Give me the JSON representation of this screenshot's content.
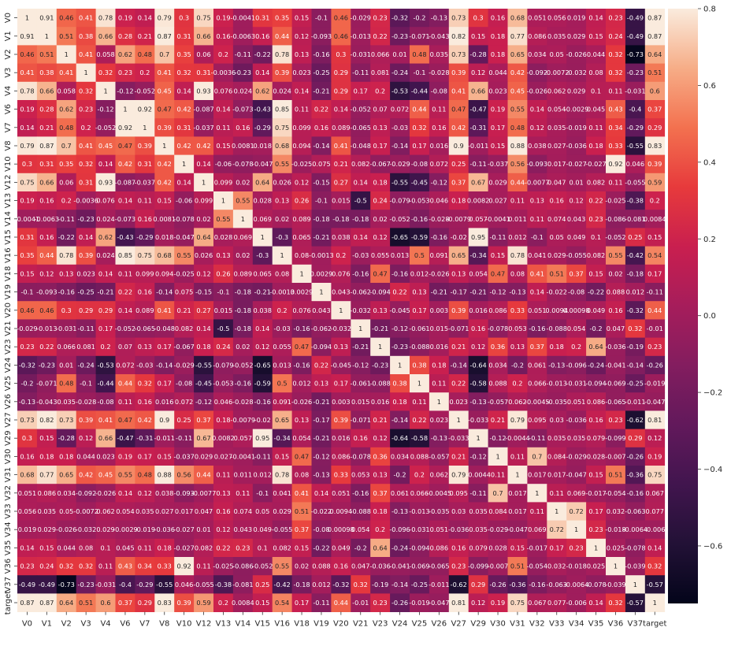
{
  "chart_data": {
    "type": "heatmap",
    "title": "",
    "xlabel": "",
    "ylabel": "",
    "labels": [
      "V0",
      "V1",
      "V2",
      "V3",
      "V4",
      "V6",
      "V7",
      "V8",
      "V10",
      "V12",
      "V13",
      "V14",
      "V15",
      "V16",
      "V18",
      "V19",
      "V20",
      "V21",
      "V23",
      "V24",
      "V25",
      "V26",
      "V27",
      "V29",
      "V30",
      "V31",
      "V32",
      "V33",
      "V34",
      "V35",
      "V36",
      "V37",
      "target"
    ],
    "colorbar": {
      "range": [
        -0.75,
        0.8
      ],
      "ticks": [
        -0.6,
        -0.4,
        -0.2,
        0.0,
        0.2,
        0.4,
        0.6,
        0.8
      ],
      "tick_labels": [
        "−0.6",
        "−0.4",
        "−0.2",
        "0.0",
        "0.2",
        "0.4",
        "0.6",
        "0.8"
      ]
    },
    "colormap": "rocket",
    "annotations": [
      [
        "1",
        "0.91",
        "0.46",
        "0.41",
        "0.78",
        "0.19",
        "0.14",
        "0.79",
        "0.3",
        "0.75",
        "0.19",
        "-0.0041",
        "0.31",
        "0.35",
        "0.15",
        "-0.1",
        "0.46",
        "-0.029",
        "0.23",
        "-0.32",
        "-0.2",
        "-0.13",
        "0.73",
        "0.3",
        "0.16",
        "0.68",
        "0.051",
        "0.056",
        "0.019",
        "0.14",
        "0.23",
        "-0.49",
        "0.87"
      ],
      [
        "0.91",
        "1",
        "0.51",
        "0.38",
        "0.66",
        "0.28",
        "0.21",
        "0.87",
        "0.31",
        "0.66",
        "0.16",
        "-0.0063",
        "0.16",
        "0.44",
        "0.12",
        "-0.093",
        "0.46",
        "-0.013",
        "0.22",
        "-0.23",
        "-0.071",
        "-0.043",
        "0.82",
        "0.15",
        "0.18",
        "0.77",
        "0.086",
        "0.035",
        "0.029",
        "0.15",
        "0.24",
        "-0.49",
        "0.87"
      ],
      [
        "0.46",
        "0.51",
        "1",
        "0.41",
        "0.058",
        "0.62",
        "0.48",
        "0.7",
        "0.35",
        "0.06",
        "0.2",
        "-0.11",
        "-0.22",
        "0.78",
        "0.13",
        "-0.16",
        "0.3",
        "-0.031",
        "0.066",
        "0.01",
        "0.48",
        "0.035",
        "0.73",
        "-0.28",
        "0.18",
        "0.65",
        "0.034",
        "0.05",
        "-0.026",
        "0.044",
        "0.32",
        "-0.73",
        "0.64"
      ],
      [
        "0.41",
        "0.38",
        "0.41",
        "1",
        "0.32",
        "0.23",
        "0.2",
        "0.41",
        "0.32",
        "0.31",
        "-0.0036",
        "-0.23",
        "0.14",
        "0.39",
        "0.023",
        "-0.25",
        "0.29",
        "-0.11",
        "0.081",
        "-0.24",
        "-0.1",
        "-0.028",
        "0.39",
        "0.12",
        "0.044",
        "0.42",
        "-0.092",
        "-0.0072",
        "-0.032",
        "0.08",
        "0.32",
        "-0.23",
        "0.51"
      ],
      [
        "0.78",
        "0.66",
        "0.058",
        "0.32",
        "1",
        "-0.12",
        "-0.052",
        "0.45",
        "0.14",
        "0.93",
        "0.076",
        "0.024",
        "0.62",
        "0.024",
        "0.14",
        "-0.21",
        "0.29",
        "0.17",
        "0.2",
        "-0.53",
        "-0.44",
        "-0.08",
        "0.41",
        "0.66",
        "0.023",
        "0.45",
        "-0.026",
        "0.062",
        "0.029",
        "0.1",
        "0.11",
        "-0.031",
        "0.6"
      ],
      [
        "0.19",
        "0.28",
        "0.62",
        "0.23",
        "-0.12",
        "1",
        "0.92",
        "0.47",
        "0.42",
        "-0.087",
        "0.14",
        "-0.073",
        "-0.43",
        "0.85",
        "0.11",
        "0.22",
        "0.14",
        "-0.052",
        "0.07",
        "0.072",
        "0.44",
        "0.11",
        "0.47",
        "-0.47",
        "0.19",
        "0.55",
        "0.14",
        "0.054",
        "-0.0029",
        "0.045",
        "0.43",
        "-0.4",
        "0.37"
      ],
      [
        "0.14",
        "0.21",
        "0.48",
        "0.2",
        "-0.052",
        "0.92",
        "1",
        "0.39",
        "0.31",
        "-0.037",
        "0.11",
        "0.16",
        "-0.29",
        "0.75",
        "0.099",
        "0.16",
        "0.089",
        "-0.065",
        "0.13",
        "-0.03",
        "0.32",
        "0.16",
        "0.42",
        "-0.31",
        "0.17",
        "0.48",
        "0.12",
        "0.035",
        "-0.019",
        "0.11",
        "0.34",
        "-0.29",
        "0.29"
      ],
      [
        "0.79",
        "0.87",
        "0.7",
        "0.41",
        "0.45",
        "0.47",
        "0.39",
        "1",
        "0.42",
        "0.42",
        "0.15",
        "0.0081",
        "0.018",
        "0.68",
        "0.094",
        "-0.14",
        "0.41",
        "-0.048",
        "0.17",
        "-0.14",
        "0.17",
        "0.016",
        "0.9",
        "-0.011",
        "0.15",
        "0.88",
        "0.038",
        "0.027",
        "-0.036",
        "0.18",
        "0.33",
        "-0.55",
        "0.83"
      ],
      [
        "0.3",
        "0.31",
        "0.35",
        "0.32",
        "0.14",
        "0.42",
        "0.31",
        "0.42",
        "1",
        "0.14",
        "-0.06",
        "-0.078",
        "-0.047",
        "0.55",
        "-0.025",
        "0.075",
        "0.21",
        "0.082",
        "-0.067",
        "-0.029",
        "-0.08",
        "0.072",
        "0.25",
        "-0.11",
        "-0.037",
        "0.56",
        "-0.093",
        "0.017",
        "-0.027",
        "-0.027",
        "0.92",
        "0.046",
        "0.39"
      ],
      [
        "0.75",
        "0.66",
        "0.06",
        "0.31",
        "0.93",
        "-0.087",
        "-0.037",
        "0.42",
        "0.14",
        "1",
        "0.099",
        "0.02",
        "0.64",
        "0.026",
        "0.12",
        "-0.15",
        "0.27",
        "0.14",
        "0.18",
        "-0.55",
        "-0.45",
        "-0.12",
        "0.37",
        "0.67",
        "0.029",
        "0.44",
        "-0.0077",
        "0.047",
        "0.01",
        "0.082",
        "0.11",
        "-0.055",
        "0.59"
      ],
      [
        "0.19",
        "0.16",
        "0.2",
        "-0.0036",
        "0.076",
        "0.14",
        "0.11",
        "0.15",
        "-0.06",
        "0.099",
        "1",
        "0.55",
        "0.028",
        "0.13",
        "0.26",
        "-0.1",
        "0.015",
        "-0.5",
        "0.24",
        "-0.079",
        "-0.053",
        "0.046",
        "0.18",
        "0.0082",
        "0.027",
        "0.11",
        "0.13",
        "0.16",
        "0.12",
        "0.22",
        "-0.025",
        "-0.38",
        "0.2"
      ],
      [
        "-0.0041",
        "-0.0063",
        "-0.11",
        "-0.23",
        "0.024",
        "-0.073",
        "0.16",
        "0.0081",
        "-0.078",
        "0.02",
        "0.55",
        "1",
        "0.069",
        "0.02",
        "0.089",
        "-0.18",
        "-0.18",
        "-0.18",
        "0.02",
        "-0.052",
        "-0.16",
        "-0.028",
        "-0.0079",
        "0.057",
        "-0.0041",
        "0.011",
        "0.11",
        "0.074",
        "0.043",
        "0.23",
        "-0.086",
        "-0.081",
        "0.0084"
      ],
      [
        "0.31",
        "0.16",
        "-0.22",
        "0.14",
        "0.62",
        "-0.43",
        "-0.29",
        "0.018",
        "-0.047",
        "0.64",
        "0.028",
        "0.069",
        "1",
        "-0.3",
        "0.065",
        "-0.21",
        "0.038",
        "0.14",
        "0.12",
        "-0.65",
        "-0.59",
        "-0.16",
        "-0.02",
        "0.95",
        "-0.11",
        "0.012",
        "-0.1",
        "0.05",
        "0.049",
        "0.1",
        "-0.052",
        "0.25",
        "0.15"
      ],
      [
        "0.35",
        "0.44",
        "0.78",
        "0.39",
        "0.024",
        "0.85",
        "0.75",
        "0.68",
        "0.55",
        "0.026",
        "0.13",
        "0.02",
        "-0.3",
        "1",
        "0.08",
        "-0.0013",
        "0.2",
        "-0.03",
        "0.055",
        "0.013",
        "0.5",
        "0.091",
        "0.65",
        "-0.34",
        "0.15",
        "0.78",
        "0.041",
        "0.029",
        "-0.055",
        "0.082",
        "0.55",
        "-0.42",
        "0.54"
      ],
      [
        "0.15",
        "0.12",
        "0.13",
        "0.023",
        "0.14",
        "0.11",
        "0.099",
        "0.094",
        "-0.025",
        "0.12",
        "0.26",
        "0.089",
        "0.065",
        "0.08",
        "1",
        "0.0029",
        "0.076",
        "-0.16",
        "0.47",
        "-0.16",
        "0.012",
        "-0.026",
        "0.13",
        "0.054",
        "0.47",
        "0.08",
        "0.41",
        "0.51",
        "0.37",
        "0.15",
        "0.02",
        "-0.18",
        "0.17"
      ],
      [
        "-0.1",
        "-0.093",
        "-0.16",
        "-0.25",
        "-0.21",
        "0.22",
        "0.16",
        "-0.14",
        "0.075",
        "-0.15",
        "-0.1",
        "-0.18",
        "-0.21",
        "-0.0013",
        "0.0029",
        "1",
        "0.043",
        "-0.062",
        "-0.094",
        "0.22",
        "0.13",
        "-0.21",
        "-0.17",
        "-0.21",
        "-0.12",
        "-0.13",
        "0.14",
        "-0.022",
        "-0.08",
        "-0.22",
        "0.088",
        "0.012",
        "-0.11"
      ],
      [
        "0.46",
        "0.46",
        "0.3",
        "0.29",
        "0.29",
        "0.14",
        "0.089",
        "0.41",
        "0.21",
        "0.27",
        "0.015",
        "-0.18",
        "0.038",
        "0.2",
        "0.076",
        "0.043",
        "1",
        "-0.032",
        "0.13",
        "-0.045",
        "0.17",
        "0.003",
        "0.39",
        "0.016",
        "0.086",
        "0.33",
        "0.051",
        "0.0094",
        "0.00098",
        "0.049",
        "0.16",
        "-0.32",
        "0.44"
      ],
      [
        "-0.029",
        "-0.013",
        "-0.031",
        "-0.11",
        "0.17",
        "-0.052",
        "-0.065",
        "-0.048",
        "0.082",
        "0.14",
        "-0.5",
        "-0.18",
        "0.14",
        "-0.03",
        "-0.16",
        "-0.062",
        "-0.032",
        "1",
        "-0.21",
        "-0.12",
        "-0.061",
        "0.015",
        "-0.071",
        "0.16",
        "-0.078",
        "0.053",
        "-0.16",
        "-0.088",
        "0.054",
        "-0.2",
        "0.047",
        "0.32",
        "-0.01"
      ],
      [
        "0.23",
        "0.22",
        "0.066",
        "0.081",
        "0.2",
        "0.07",
        "0.13",
        "0.17",
        "-0.067",
        "0.18",
        "0.24",
        "0.02",
        "0.12",
        "0.055",
        "0.47",
        "-0.094",
        "0.13",
        "-0.21",
        "1",
        "-0.23",
        "-0.088",
        "0.016",
        "0.21",
        "0.12",
        "0.36",
        "0.13",
        "0.37",
        "0.18",
        "0.2",
        "0.64",
        "-0.036",
        "-0.19",
        "0.23"
      ],
      [
        "-0.32",
        "-0.23",
        "0.01",
        "-0.24",
        "-0.53",
        "0.072",
        "-0.03",
        "-0.14",
        "-0.029",
        "-0.55",
        "-0.079",
        "-0.052",
        "-0.65",
        "0.013",
        "-0.16",
        "0.22",
        "-0.045",
        "-0.12",
        "-0.23",
        "1",
        "0.38",
        "0.18",
        "-0.14",
        "-0.64",
        "0.034",
        "-0.2",
        "0.061",
        "-0.13",
        "-0.096",
        "-0.24",
        "-0.041",
        "-0.14",
        "-0.26"
      ],
      [
        "-0.2",
        "-0.071",
        "0.48",
        "-0.1",
        "-0.44",
        "0.44",
        "0.32",
        "0.17",
        "-0.08",
        "-0.45",
        "-0.053",
        "-0.16",
        "-0.59",
        "0.5",
        "0.012",
        "0.13",
        "0.17",
        "-0.061",
        "-0.088",
        "0.38",
        "1",
        "0.11",
        "0.22",
        "-0.58",
        "0.088",
        "0.2",
        "0.066",
        "-0.013",
        "-0.031",
        "-0.094",
        "-0.069",
        "-0.25",
        "-0.019"
      ],
      [
        "-0.13",
        "-0.043",
        "0.035",
        "-0.028",
        "-0.08",
        "0.11",
        "0.16",
        "0.016",
        "0.072",
        "-0.12",
        "0.046",
        "-0.028",
        "-0.16",
        "0.091",
        "-0.026",
        "-0.21",
        "0.003",
        "0.015",
        "0.016",
        "0.18",
        "0.11",
        "1",
        "0.023",
        "-0.13",
        "-0.057",
        "0.062",
        "-0.0045",
        "-0.035",
        "0.051",
        "0.086",
        "-0.065",
        "-0.011",
        "-0.047"
      ],
      [
        "0.73",
        "0.82",
        "0.73",
        "0.39",
        "0.41",
        "0.47",
        "0.42",
        "0.9",
        "0.25",
        "0.37",
        "0.18",
        "-0.0079",
        "-0.02",
        "0.65",
        "0.13",
        "-0.17",
        "0.39",
        "-0.071",
        "0.21",
        "-0.14",
        "0.22",
        "0.023",
        "1",
        "-0.033",
        "0.21",
        "0.79",
        "0.095",
        "0.03",
        "-0.036",
        "0.16",
        "0.23",
        "-0.62",
        "0.81"
      ],
      [
        "0.3",
        "0.15",
        "-0.28",
        "0.12",
        "0.66",
        "-0.47",
        "-0.31",
        "-0.011",
        "-0.11",
        "0.67",
        "0.0082",
        "0.057",
        "0.95",
        "-0.34",
        "0.054",
        "-0.21",
        "0.016",
        "0.16",
        "0.12",
        "-0.64",
        "-0.58",
        "-0.13",
        "-0.033",
        "1",
        "-0.12",
        "-0.0044",
        "-0.11",
        "0.035",
        "0.035",
        "0.079",
        "-0.099",
        "0.29",
        "0.12"
      ],
      [
        "0.16",
        "0.18",
        "0.18",
        "0.044",
        "0.023",
        "0.19",
        "0.17",
        "0.15",
        "-0.037",
        "0.029",
        "0.027",
        "-0.0041",
        "-0.11",
        "0.15",
        "0.47",
        "-0.12",
        "0.086",
        "-0.078",
        "0.36",
        "0.034",
        "0.088",
        "-0.057",
        "0.21",
        "-0.12",
        "1",
        "0.11",
        "0.7",
        "0.084",
        "-0.029",
        "0.028",
        "-0.007",
        "-0.26",
        "0.19"
      ],
      [
        "0.68",
        "0.77",
        "0.65",
        "0.42",
        "0.45",
        "0.55",
        "0.48",
        "0.88",
        "0.56",
        "0.44",
        "0.11",
        "0.011",
        "0.012",
        "0.78",
        "0.08",
        "-0.13",
        "0.33",
        "0.053",
        "0.13",
        "-0.2",
        "0.2",
        "0.062",
        "0.79",
        "-0.0044",
        "0.11",
        "1",
        "0.017",
        "0.017",
        "-0.047",
        "0.15",
        "0.51",
        "-0.36",
        "0.75"
      ],
      [
        "0.051",
        "0.086",
        "0.034",
        "-0.092",
        "-0.026",
        "0.14",
        "0.12",
        "0.038",
        "-0.093",
        "-0.0077",
        "0.13",
        "0.11",
        "-0.1",
        "0.041",
        "0.41",
        "0.14",
        "0.051",
        "-0.16",
        "0.37",
        "0.061",
        "0.066",
        "-0.0045",
        "0.095",
        "-0.11",
        "0.7",
        "0.017",
        "1",
        "0.11",
        "0.069",
        "-0.017",
        "-0.054",
        "-0.16",
        "0.067"
      ],
      [
        "0.056",
        "0.035",
        "0.05",
        "-0.0072",
        "0.062",
        "0.054",
        "0.035",
        "0.027",
        "0.017",
        "0.047",
        "0.16",
        "0.074",
        "0.05",
        "0.029",
        "0.51",
        "-0.022",
        "0.0094",
        "-0.088",
        "0.18",
        "-0.13",
        "-0.013",
        "-0.035",
        "0.03",
        "0.035",
        "0.084",
        "0.017",
        "0.11",
        "1",
        "0.72",
        "0.17",
        "0.032",
        "-0.063",
        "0.077"
      ],
      [
        "0.019",
        "0.029",
        "-0.026",
        "-0.032",
        "0.029",
        "-0.0029",
        "-0.019",
        "-0.036",
        "-0.027",
        "0.01",
        "0.12",
        "0.043",
        "0.049",
        "-0.055",
        "0.37",
        "-0.08",
        "0.00098",
        "0.054",
        "0.2",
        "-0.096",
        "-0.031",
        "0.051",
        "-0.036",
        "0.035",
        "-0.029",
        "-0.047",
        "0.069",
        "0.72",
        "1",
        "0.23",
        "-0.018",
        "-0.0064",
        "-0.006"
      ],
      [
        "0.14",
        "0.15",
        "0.044",
        "0.08",
        "0.1",
        "0.045",
        "0.11",
        "0.18",
        "-0.027",
        "0.082",
        "0.22",
        "0.23",
        "0.1",
        "0.082",
        "0.15",
        "-0.22",
        "0.049",
        "-0.2",
        "0.64",
        "-0.24",
        "-0.094",
        "0.086",
        "0.16",
        "0.079",
        "0.028",
        "0.15",
        "-0.017",
        "0.17",
        "0.23",
        "1",
        "0.025",
        "-0.078",
        "0.14"
      ],
      [
        "0.23",
        "0.24",
        "0.32",
        "0.32",
        "0.11",
        "0.43",
        "0.34",
        "0.33",
        "0.92",
        "0.11",
        "-0.025",
        "-0.086",
        "-0.052",
        "0.55",
        "0.02",
        "0.088",
        "0.16",
        "0.047",
        "-0.036",
        "-0.041",
        "-0.069",
        "-0.065",
        "0.23",
        "-0.099",
        "-0.007",
        "0.51",
        "-0.054",
        "0.032",
        "-0.018",
        "0.025",
        "1",
        "-0.039",
        "0.32"
      ],
      [
        "-0.49",
        "-0.49",
        "-0.73",
        "-0.23",
        "-0.031",
        "-0.4",
        "-0.29",
        "-0.55",
        "0.046",
        "-0.055",
        "-0.38",
        "-0.081",
        "0.25",
        "-0.42",
        "-0.18",
        "0.012",
        "-0.32",
        "0.32",
        "-0.19",
        "-0.14",
        "-0.25",
        "-0.011",
        "-0.62",
        "0.29",
        "-0.26",
        "-0.36",
        "-0.16",
        "-0.063",
        "-0.0064",
        "-0.078",
        "-0.039",
        "1",
        "-0.57"
      ],
      [
        "0.87",
        "0.87",
        "0.64",
        "0.51",
        "0.6",
        "0.37",
        "0.29",
        "0.83",
        "0.39",
        "0.59",
        "0.2",
        "0.0084",
        "0.15",
        "0.54",
        "0.17",
        "-0.11",
        "0.44",
        "-0.01",
        "0.23",
        "-0.26",
        "-0.019",
        "-0.047",
        "0.81",
        "0.12",
        "0.19",
        "0.75",
        "0.067",
        "0.077",
        "-0.006",
        "0.14",
        "0.32",
        "-0.57",
        "1"
      ]
    ]
  }
}
